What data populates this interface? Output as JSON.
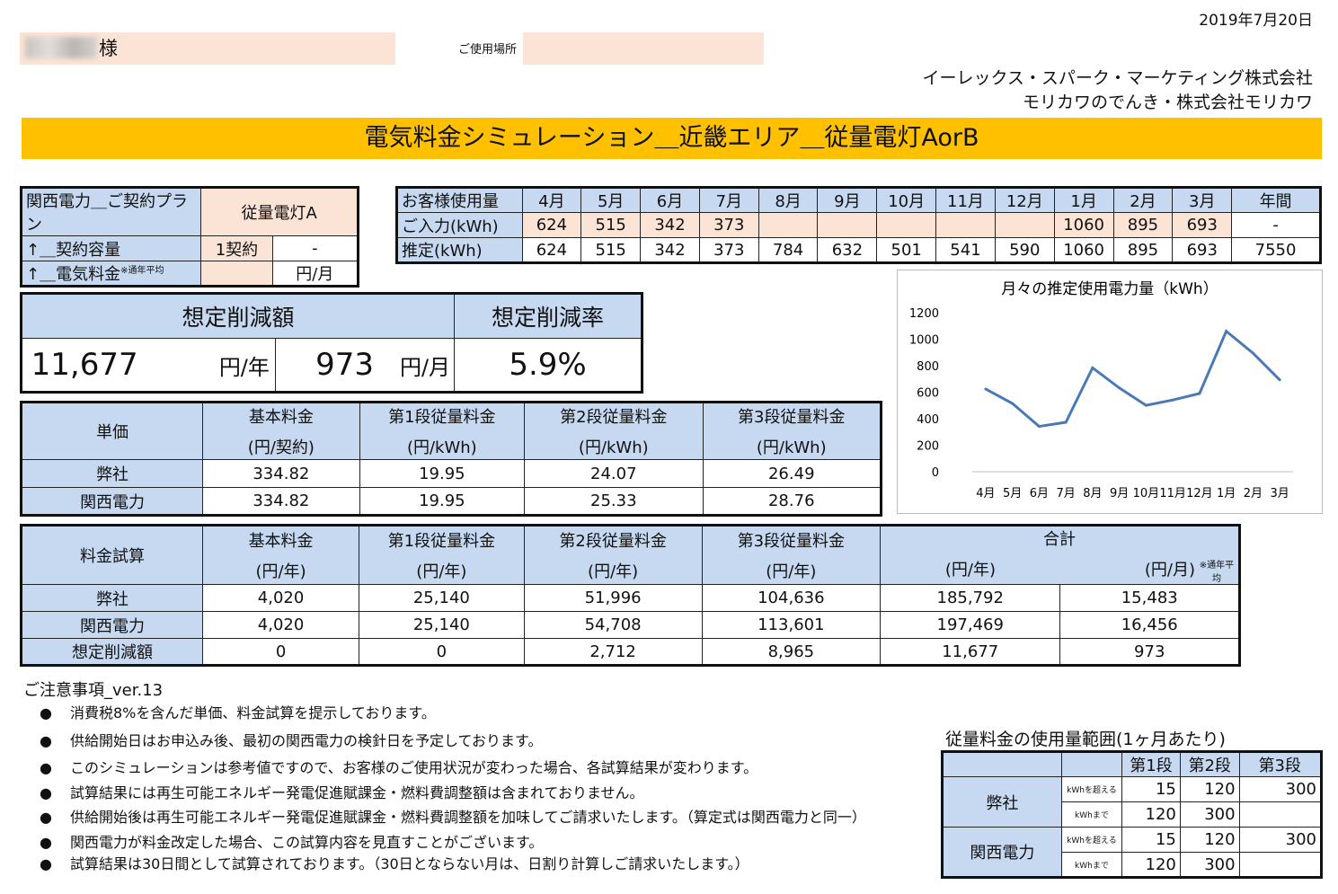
{
  "date": "2019年7月20日",
  "customer": {
    "suffix": "様",
    "place_label": "ご使用場所"
  },
  "companies": [
    "イーレックス・スパーク・マーケティング株式会社",
    "モリカワのでんき・株式会社モリカワ"
  ],
  "title": "電気料金シミュレーション＿近畿エリア＿従量電灯AorB",
  "contract": {
    "plan_label": "関西電力＿ご契約プラン",
    "plan_value": "従量電灯A",
    "capacity_label": "↑＿契約容量",
    "capacity_value": "1契約",
    "capacity_extra": "-",
    "fee_label": "↑＿電気料金",
    "fee_note": "※通年平均",
    "fee_unit": "円/月"
  },
  "usage": {
    "header_label": "お客様使用量",
    "months": [
      "4月",
      "5月",
      "6月",
      "7月",
      "8月",
      "9月",
      "10月",
      "11月",
      "12月",
      "1月",
      "2月",
      "3月",
      "年間"
    ],
    "input_label": "ご入力(kWh)",
    "input": [
      "624",
      "515",
      "342",
      "373",
      "",
      "",
      "",
      "",
      "",
      "1060",
      "895",
      "693",
      "-"
    ],
    "est_label": "推定(kWh)",
    "estimate": [
      "624",
      "515",
      "342",
      "373",
      "784",
      "632",
      "501",
      "541",
      "590",
      "1060",
      "895",
      "693",
      "7550"
    ]
  },
  "savings": {
    "amount_label": "想定削減額",
    "rate_label": "想定削減率",
    "yearly": "11,677",
    "yearly_unit": "円/年",
    "monthly": "973",
    "monthly_unit": "円/月",
    "rate": "5.9%"
  },
  "unit_price": {
    "label": "単価",
    "headers": [
      [
        "基本料金",
        "(円/契約)"
      ],
      [
        "第1段従量料金",
        "(円/kWh)"
      ],
      [
        "第2段従量料金",
        "(円/kWh)"
      ],
      [
        "第3段従量料金",
        "(円/kWh)"
      ]
    ],
    "rows": [
      {
        "name": "弊社",
        "values": [
          "334.82",
          "19.95",
          "24.07",
          "26.49"
        ]
      },
      {
        "name": "関西電力",
        "values": [
          "334.82",
          "19.95",
          "25.33",
          "28.76"
        ]
      }
    ]
  },
  "fee_trial": {
    "label": "料金試算",
    "headers": [
      [
        "基本料金",
        "(円/年)"
      ],
      [
        "第1段従量料金",
        "(円/年)"
      ],
      [
        "第2段従量料金",
        "(円/年)"
      ],
      [
        "第3段従量料金",
        "(円/年)"
      ]
    ],
    "total_label": "合計",
    "total_year": "(円/年)",
    "total_month": "(円/月)",
    "total_note": "※通年平均",
    "rows": [
      {
        "name": "弊社",
        "values": [
          "4,020",
          "25,140",
          "51,996",
          "104,636",
          "185,792",
          "15,483"
        ]
      },
      {
        "name": "関西電力",
        "values": [
          "4,020",
          "25,140",
          "54,708",
          "113,601",
          "197,469",
          "16,456"
        ]
      },
      {
        "name": "想定削減額",
        "values": [
          "0",
          "0",
          "2,712",
          "8,965",
          "11,677",
          "973"
        ]
      }
    ]
  },
  "notes": {
    "title": "ご注意事項_ver.13",
    "bullet": "●",
    "items": [
      "消費税8%を含んだ単価、料金試算を提示しております。",
      "供給開始日はお申込み後、最初の関西電力の検針日を予定しております。",
      "このシミュレーションは参考値ですので、お客様のご使用状況が変わった場合、各試算結果が変わります。",
      "試算結果には再生可能エネルギー発電促進賦課金・燃料費調整額は含まれておりません。",
      "供給開始後は再生可能エネルギー発電促進賦課金・燃料費調整額を加味してご請求いたします。（算定式は関西電力と同一）",
      "関西電力が料金改定した場合、この試算内容を見直すことがございます。",
      "試算結果は30日間として試算されております。（30日とならない月は、日割り計算しご請求いたします。）"
    ]
  },
  "range": {
    "title": "従量料金の使用量範囲(1ヶ月あたり)",
    "headers": [
      "第1段",
      "第2段",
      "第3段"
    ],
    "over_label": "kWhを超える",
    "upto_label": "kWhまで",
    "rows": [
      {
        "name": "弊社",
        "over": [
          "15",
          "120",
          "300"
        ],
        "upto": [
          "120",
          "300",
          ""
        ]
      },
      {
        "name": "関西電力",
        "over": [
          "15",
          "120",
          "300"
        ],
        "upto": [
          "120",
          "300",
          ""
        ]
      }
    ]
  },
  "chart_data": {
    "type": "line",
    "title": "月々の推定使用電力量（kWh）",
    "categories": [
      "4月",
      "5月",
      "6月",
      "7月",
      "8月",
      "9月",
      "10月",
      "11月",
      "12月",
      "1月",
      "2月",
      "3月"
    ],
    "values": [
      624,
      515,
      342,
      373,
      784,
      632,
      501,
      541,
      590,
      1060,
      895,
      693
    ],
    "ylim": [
      0,
      1200
    ],
    "yticks": [
      "0",
      "200",
      "400",
      "600",
      "800",
      "1000",
      "1200"
    ],
    "xlabel": "",
    "ylabel": "",
    "color": "#4a7ab5",
    "grid": false
  }
}
